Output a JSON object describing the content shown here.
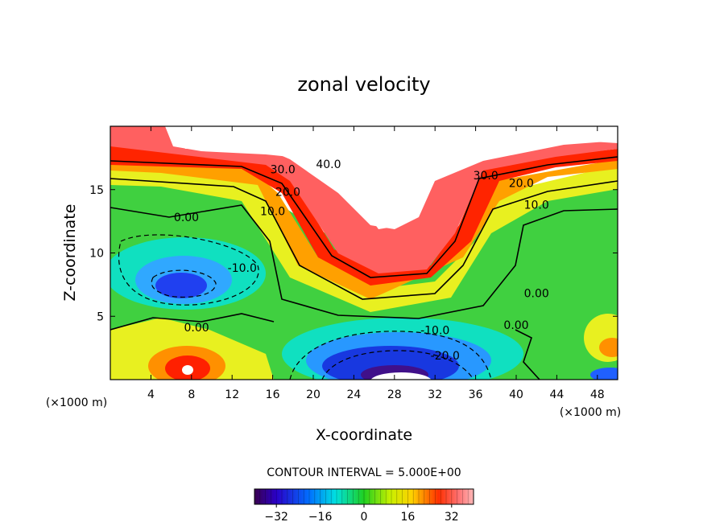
{
  "chart_data": {
    "type": "contour",
    "title": "zonal velocity",
    "xlabel": "X-coordinate",
    "ylabel": "Z-coordinate",
    "x_unit": "(×1000 m)",
    "x_unit_right": "(×1000 m)",
    "xlim": [
      0,
      50
    ],
    "ylim": [
      0,
      20
    ],
    "x_ticks": [
      4,
      8,
      12,
      16,
      20,
      24,
      28,
      32,
      36,
      40,
      44,
      48
    ],
    "y_ticks": [
      5,
      10,
      15
    ],
    "contour_interval_text": "CONTOUR INTERVAL = 5.000E+00",
    "contour_interval": 5.0,
    "colorbar": {
      "range": [
        -40,
        40
      ],
      "ticks": [
        -32,
        -16,
        0,
        16,
        32
      ],
      "tick_labels": [
        "−32",
        "−16",
        "0",
        "16",
        "32"
      ],
      "colormap": "rainbow (purple-blue-cyan-green-yellow-red-pink)"
    },
    "contour_labels": [
      {
        "text": "40.0",
        "x": 21.5,
        "y": 16.7
      },
      {
        "text": "30.0",
        "x": 17.0,
        "y": 16.3
      },
      {
        "text": "20.0",
        "x": 17.5,
        "y": 14.5
      },
      {
        "text": "10.0",
        "x": 16.0,
        "y": 13.0
      },
      {
        "text": "0.00",
        "x": 7.5,
        "y": 12.5
      },
      {
        "text": "30.0",
        "x": 37.0,
        "y": 15.8
      },
      {
        "text": "20.0",
        "x": 40.5,
        "y": 15.2
      },
      {
        "text": "10.0",
        "x": 42.0,
        "y": 13.5
      },
      {
        "text": "-10.0",
        "x": 13.0,
        "y": 8.5
      },
      {
        "text": "0.00",
        "x": 42.0,
        "y": 6.5
      },
      {
        "text": "0.00",
        "x": 8.5,
        "y": 3.8
      },
      {
        "text": "-10.0",
        "x": 32.0,
        "y": 3.6
      },
      {
        "text": "0.00",
        "x": 40.0,
        "y": 4.0
      },
      {
        "text": "-20.0",
        "x": 33.0,
        "y": 1.6
      }
    ],
    "features": [
      {
        "kind": "max",
        "approx_value": 45,
        "x": 29,
        "y": 14
      },
      {
        "kind": "min",
        "approx_value": -40,
        "x": 28,
        "y": 1.2
      },
      {
        "kind": "min",
        "approx_value": -25,
        "x": 7.5,
        "y": 7.5
      },
      {
        "kind": "max",
        "approx_value": 35,
        "x": 7.5,
        "y": 0.8
      }
    ],
    "grid": false,
    "legend": "colorbar-bottom"
  }
}
